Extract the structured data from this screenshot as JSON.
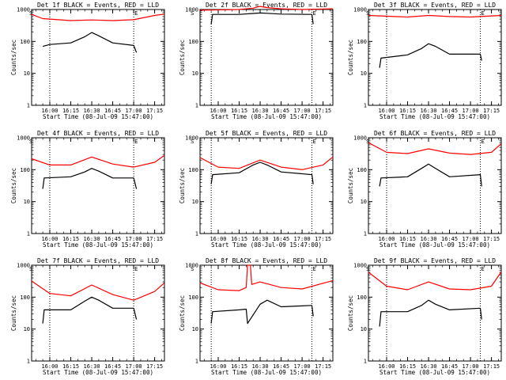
{
  "chart_data": [
    {
      "type": "line",
      "detector": "1f",
      "title": "Det 1f BLACK = Events, RED = LLD",
      "xlabel": "Start Time (08-Jul-09 15:47:00)",
      "ylabel": "Counts/sec",
      "x_ticks": [
        "16:00",
        "16:15",
        "16:30",
        "16:45",
        "17:00",
        "17:15"
      ],
      "y_ticks": [
        "1",
        "10",
        "100",
        "1000"
      ],
      "yscale": "log",
      "ylim": [
        1,
        1000
      ],
      "markers": [
        "S",
        "E"
      ],
      "dotted_lines_x": [
        "16:00",
        "17:00"
      ],
      "series": [
        {
          "name": "Events",
          "color": "#000000",
          "x": [
            "15:55",
            "16:00",
            "16:15",
            "16:25",
            "16:30",
            "16:35",
            "16:45",
            "17:00",
            "17:02"
          ],
          "y": [
            70,
            80,
            90,
            140,
            190,
            150,
            90,
            75,
            45
          ]
        },
        {
          "name": "LLD",
          "color": "#ff0000",
          "x": [
            "15:47",
            "15:55",
            "16:15",
            "16:30",
            "16:45",
            "17:00",
            "17:15",
            "17:22"
          ],
          "y": [
            700,
            520,
            450,
            470,
            450,
            480,
            650,
            720
          ]
        }
      ]
    },
    {
      "type": "line",
      "detector": "2f",
      "title": "Det 2f BLACK = Events, RED = LLD",
      "xlabel": "Start Time (08-Jul-09 15:47:00)",
      "ylabel": "Counts/sec",
      "x_ticks": [
        "16:00",
        "16:15",
        "16:30",
        "16:45",
        "17:00",
        "17:15"
      ],
      "y_ticks": [
        "1",
        "10",
        "100",
        "1000"
      ],
      "yscale": "log",
      "ylim": [
        1,
        1000
      ],
      "markers": [
        "S",
        "E"
      ],
      "dotted_lines_x": [
        "15:55",
        "17:07"
      ],
      "series": [
        {
          "name": "Events",
          "color": "#000000",
          "x": [
            "15:55",
            "15:56",
            "16:15",
            "16:25",
            "16:30",
            "16:35",
            "16:45",
            "17:07",
            "17:08"
          ],
          "y": [
            350,
            700,
            700,
            750,
            780,
            760,
            720,
            700,
            350
          ]
        },
        {
          "name": "LLD",
          "color": "#ff0000",
          "x": [
            "15:47",
            "16:15",
            "16:25",
            "16:30",
            "16:35",
            "16:45",
            "17:00",
            "17:22"
          ],
          "y": [
            950,
            1000,
            1100,
            1250,
            1150,
            1050,
            1000,
            1050
          ]
        }
      ]
    },
    {
      "type": "line",
      "detector": "3f",
      "title": "Det 3f BLACK = Events, RED = LLD",
      "xlabel": "Start Time (08-Jul-09 15:47:00)",
      "ylabel": "Counts/sec",
      "x_ticks": [
        "16:00",
        "16:15",
        "16:30",
        "16:45",
        "17:00",
        "17:15"
      ],
      "y_ticks": [
        "1",
        "10",
        "100",
        "1000"
      ],
      "yscale": "log",
      "ylim": [
        1,
        1000
      ],
      "markers": [
        "S",
        "E"
      ],
      "dotted_lines_x": [
        "16:00",
        "17:07"
      ],
      "series": [
        {
          "name": "Events",
          "color": "#000000",
          "x": [
            "15:55",
            "15:56",
            "16:15",
            "16:25",
            "16:30",
            "16:35",
            "16:45",
            "17:07",
            "17:08"
          ],
          "y": [
            15,
            30,
            38,
            60,
            85,
            70,
            40,
            40,
            25
          ]
        },
        {
          "name": "LLD",
          "color": "#ff0000",
          "x": [
            "15:47",
            "16:15",
            "16:30",
            "16:45",
            "17:00",
            "17:22"
          ],
          "y": [
            650,
            580,
            650,
            600,
            580,
            650
          ]
        }
      ]
    },
    {
      "type": "line",
      "detector": "4f",
      "title": "Det 4f BLACK = Events, RED = LLD",
      "xlabel": "Start Time (08-Jul-09 15:47:00)",
      "ylabel": "Counts/sec",
      "x_ticks": [
        "16:00",
        "16:15",
        "16:30",
        "16:45",
        "17:00",
        "17:15"
      ],
      "y_ticks": [
        "1",
        "10",
        "100",
        "1000"
      ],
      "yscale": "log",
      "ylim": [
        1,
        1000
      ],
      "markers": [
        "S",
        "E"
      ],
      "dotted_lines_x": [
        "16:00",
        "17:00"
      ],
      "series": [
        {
          "name": "Events",
          "color": "#000000",
          "x": [
            "15:55",
            "15:56",
            "16:15",
            "16:25",
            "16:30",
            "16:35",
            "16:45",
            "17:00",
            "17:02"
          ],
          "y": [
            25,
            55,
            60,
            85,
            110,
            90,
            55,
            55,
            25
          ]
        },
        {
          "name": "LLD",
          "color": "#ff0000",
          "x": [
            "15:47",
            "16:00",
            "16:15",
            "16:30",
            "16:45",
            "17:00",
            "17:15",
            "17:22"
          ],
          "y": [
            220,
            140,
            140,
            250,
            150,
            120,
            170,
            280
          ]
        }
      ]
    },
    {
      "type": "line",
      "detector": "5f",
      "title": "Det 5f BLACK = Events, RED = LLD",
      "xlabel": "Start Time (08-Jul-09 15:47:00)",
      "ylabel": "Counts/sec",
      "x_ticks": [
        "16:00",
        "16:15",
        "16:30",
        "16:45",
        "17:00",
        "17:15"
      ],
      "y_ticks": [
        "1",
        "10",
        "100",
        "1000"
      ],
      "yscale": "log",
      "ylim": [
        1,
        1000
      ],
      "markers": [
        "S",
        "E"
      ],
      "dotted_lines_x": [
        "15:55",
        "17:07"
      ],
      "series": [
        {
          "name": "Events",
          "color": "#000000",
          "x": [
            "15:55",
            "15:56",
            "16:15",
            "16:25",
            "16:30",
            "16:35",
            "16:45",
            "17:07",
            "17:08"
          ],
          "y": [
            35,
            70,
            80,
            140,
            170,
            140,
            85,
            70,
            35
          ]
        },
        {
          "name": "LLD",
          "color": "#ff0000",
          "x": [
            "15:47",
            "16:00",
            "16:15",
            "16:30",
            "16:45",
            "17:00",
            "17:15",
            "17:22"
          ],
          "y": [
            240,
            120,
            110,
            200,
            120,
            100,
            140,
            250
          ]
        }
      ]
    },
    {
      "type": "line",
      "detector": "6f",
      "title": "Det 6f BLACK = Events, RED = LLD",
      "xlabel": "Start Time (08-Jul-09 15:47:00)",
      "ylabel": "Counts/sec",
      "x_ticks": [
        "16:00",
        "16:15",
        "16:30",
        "16:45",
        "17:00",
        "17:15"
      ],
      "y_ticks": [
        "1",
        "10",
        "100",
        "1000"
      ],
      "yscale": "log",
      "ylim": [
        1,
        1000
      ],
      "markers": [
        "S",
        "E"
      ],
      "dotted_lines_x": [
        "16:00",
        "17:07"
      ],
      "series": [
        {
          "name": "Events",
          "color": "#000000",
          "x": [
            "15:55",
            "15:56",
            "16:15",
            "16:25",
            "16:30",
            "16:35",
            "16:45",
            "17:07",
            "17:08"
          ],
          "y": [
            30,
            55,
            60,
            110,
            150,
            110,
            60,
            70,
            30
          ]
        },
        {
          "name": "LLD",
          "color": "#ff0000",
          "x": [
            "15:47",
            "16:00",
            "16:15",
            "16:30",
            "16:45",
            "17:00",
            "17:15",
            "17:22"
          ],
          "y": [
            700,
            350,
            320,
            450,
            330,
            300,
            350,
            650
          ]
        }
      ]
    },
    {
      "type": "line",
      "detector": "7f",
      "title": "Det 7f BLACK = Events, RED = LLD",
      "xlabel": "Start Time (08-Jul-09 15:47:00)",
      "ylabel": "Counts/sec",
      "x_ticks": [
        "16:00",
        "16:15",
        "16:30",
        "16:45",
        "17:00",
        "17:15"
      ],
      "y_ticks": [
        "1",
        "10",
        "100",
        "1000"
      ],
      "yscale": "log",
      "ylim": [
        1,
        1000
      ],
      "markers": [
        "S",
        "E"
      ],
      "dotted_lines_x": [
        "16:00",
        "17:00"
      ],
      "series": [
        {
          "name": "Events",
          "color": "#000000",
          "x": [
            "15:55",
            "15:56",
            "16:15",
            "16:25",
            "16:30",
            "16:35",
            "16:45",
            "17:00",
            "17:02"
          ],
          "y": [
            15,
            40,
            40,
            75,
            100,
            80,
            45,
            45,
            20
          ]
        },
        {
          "name": "LLD",
          "color": "#ff0000",
          "x": [
            "15:47",
            "16:00",
            "16:15",
            "16:30",
            "16:45",
            "17:00",
            "17:15",
            "17:22"
          ],
          "y": [
            320,
            130,
            110,
            240,
            120,
            80,
            150,
            280
          ]
        }
      ]
    },
    {
      "type": "line",
      "detector": "8f",
      "title": "Det 8f BLACK = Events, RED = LLD",
      "xlabel": "Start Time (08-Jul-09 15:47:00)",
      "ylabel": "Counts/sec",
      "x_ticks": [
        "16:00",
        "16:15",
        "16:30",
        "16:45",
        "17:00",
        "17:15"
      ],
      "y_ticks": [
        "1",
        "10",
        "100",
        "1000"
      ],
      "yscale": "log",
      "ylim": [
        1,
        1000
      ],
      "markers": [
        "S",
        "E"
      ],
      "dotted_lines_x": [
        "15:55",
        "17:07"
      ],
      "series": [
        {
          "name": "Events",
          "color": "#000000",
          "x": [
            "15:55",
            "15:56",
            "16:15",
            "16:20",
            "16:21",
            "16:30",
            "16:35",
            "16:45",
            "17:07",
            "17:08"
          ],
          "y": [
            15,
            35,
            40,
            42,
            15,
            60,
            80,
            50,
            55,
            25
          ]
        },
        {
          "name": "LLD",
          "color": "#ff0000",
          "x": [
            "15:47",
            "16:00",
            "16:15",
            "16:20",
            "16:21",
            "16:23",
            "16:24",
            "16:30",
            "16:45",
            "17:00",
            "17:22"
          ],
          "y": [
            280,
            170,
            160,
            200,
            1000,
            1000,
            250,
            300,
            200,
            180,
            330
          ]
        }
      ]
    },
    {
      "type": "line",
      "detector": "9f",
      "title": "Det 9f BLACK = Events, RED = LLD",
      "xlabel": "Start Time (08-Jul-09 15:47:00)",
      "ylabel": "Counts/sec",
      "x_ticks": [
        "16:00",
        "16:15",
        "16:30",
        "16:45",
        "17:00",
        "17:15"
      ],
      "y_ticks": [
        "1",
        "10",
        "100",
        "1000"
      ],
      "yscale": "log",
      "ylim": [
        1,
        1000
      ],
      "markers": [
        "S",
        "E"
      ],
      "dotted_lines_x": [
        "16:00",
        "17:07"
      ],
      "series": [
        {
          "name": "Events",
          "color": "#000000",
          "x": [
            "15:55",
            "15:56",
            "16:15",
            "16:25",
            "16:30",
            "16:35",
            "16:45",
            "17:07",
            "17:08"
          ],
          "y": [
            12,
            35,
            35,
            55,
            80,
            60,
            40,
            45,
            20
          ]
        },
        {
          "name": "LLD",
          "color": "#ff0000",
          "x": [
            "15:47",
            "16:00",
            "16:15",
            "16:30",
            "16:45",
            "17:00",
            "17:15",
            "17:22"
          ],
          "y": [
            600,
            220,
            170,
            300,
            180,
            170,
            220,
            620
          ]
        }
      ]
    }
  ]
}
